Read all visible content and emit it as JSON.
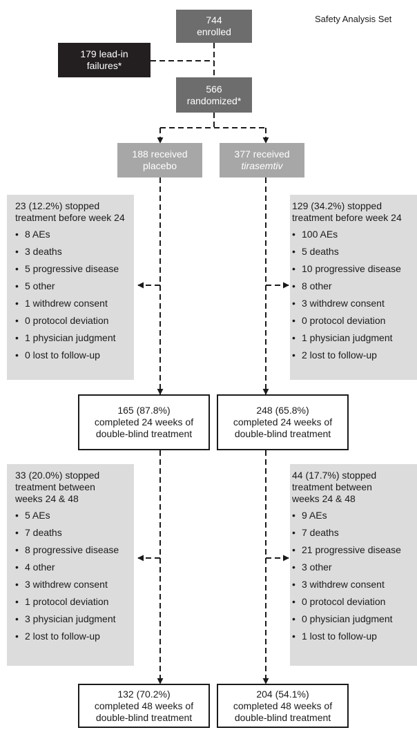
{
  "header": {
    "set_label": "Safety Analysis Set"
  },
  "nodes": {
    "enrolled": {
      "line1": "744",
      "line2": "enrolled"
    },
    "lead_in": {
      "line1": "179 lead-in",
      "line2": "failures*"
    },
    "randomized": {
      "line1": "566",
      "line2": "randomized*"
    },
    "placebo": {
      "line1": "188 received",
      "line2": "placebo"
    },
    "tirasemtiv": {
      "line1": "377 received",
      "line2": "tirasemtiv"
    },
    "placebo_week24": {
      "line1": "165 (87.8%)",
      "line2": "completed 24 weeks of",
      "line3": "double-blind treatment"
    },
    "tirasemtiv_week24": {
      "line1": "248 (65.8%)",
      "line2": "completed 24 weeks of",
      "line3": "double-blind treatment"
    },
    "placebo_week48": {
      "line1": "132 (70.2%)",
      "line2": "completed 48 weeks of",
      "line3": "double-blind treatment"
    },
    "tirasemtiv_week48": {
      "line1": "204 (54.1%)",
      "line2": "completed 48 weeks of",
      "line3": "double-blind treatment"
    }
  },
  "panels": {
    "placebo_before24": {
      "title_line1": "23 (12.2%) stopped",
      "title_line2": "treatment before week 24",
      "items": [
        "8 AEs",
        "3 deaths",
        "5 progressive disease",
        "5 other",
        "1 withdrew consent",
        "0 protocol deviation",
        "1 physician judgment",
        "0 lost to follow-up"
      ]
    },
    "tirasemtiv_before24": {
      "title_line1": "129 (34.2%) stopped",
      "title_line2": "treatment before week 24",
      "items": [
        "100 AEs",
        "5 deaths",
        "10 progressive disease",
        "8 other",
        "3 withdrew consent",
        "0 protocol deviation",
        "1 physician judgment",
        "2 lost to follow-up"
      ]
    },
    "placebo_24_48": {
      "title_line1": "33 (20.0%) stopped",
      "title_line2": "treatment between",
      "title_line3": "weeks 24 & 48",
      "items": [
        "5 AEs",
        "7 deaths",
        "8 progressive disease",
        "4 other",
        "3 withdrew consent",
        "1 protocol deviation",
        "3 physician judgment",
        "2 lost to follow-up"
      ]
    },
    "tirasemtiv_24_48": {
      "title_line1": "44 (17.7%) stopped",
      "title_line2": "treatment between",
      "title_line3": "weeks 24 & 48",
      "items": [
        "9 AEs",
        "7 deaths",
        "21 progressive disease",
        "3 other",
        "3 withdrew consent",
        "0 protocol deviation",
        "0 physician judgment",
        "1 lost to follow-up"
      ]
    }
  },
  "colors": {
    "dark_box": "#6d6d6d",
    "black_box": "#231f20",
    "light_box": "#a7a7a7",
    "panel": "#dcdcdc",
    "line": "#1a1a1a"
  }
}
